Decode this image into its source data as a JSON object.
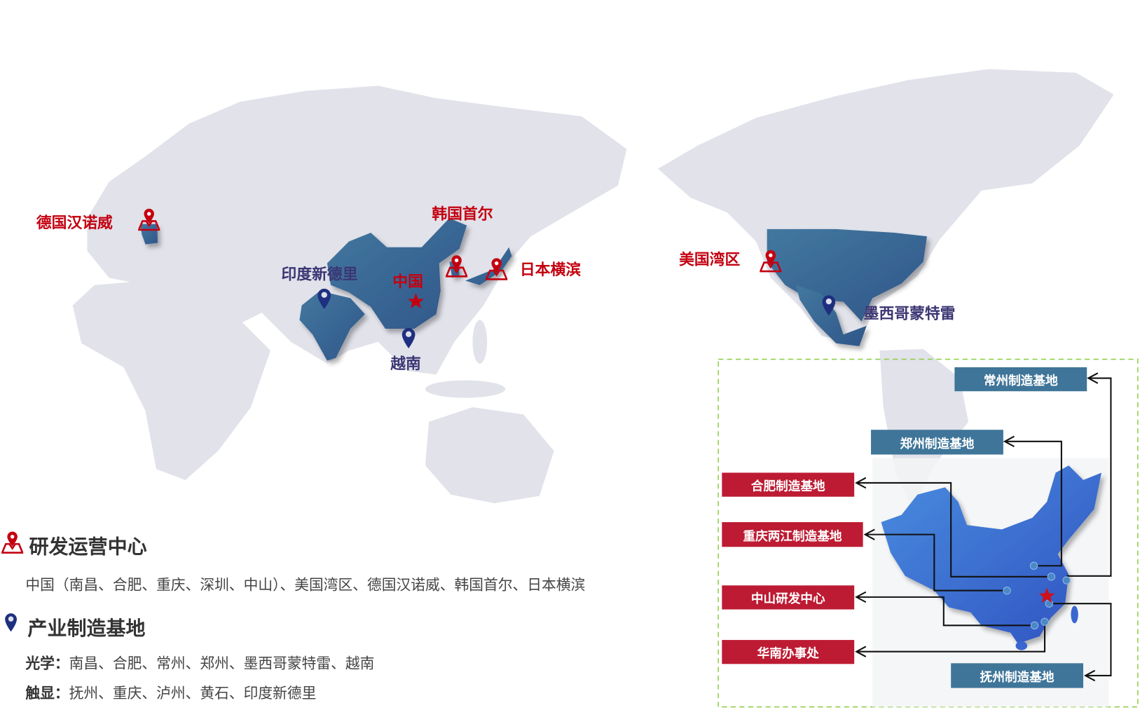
{
  "map_labels": {
    "germany": "德国汉诺威",
    "korea": "韩国首尔",
    "japan": "日本横滨",
    "china": "中国",
    "india": "印度新德里",
    "vietnam": "越南",
    "usa": "美国湾区",
    "mexico": "墨西哥蒙特雷"
  },
  "inset": {
    "changzhou": "常州制造基地",
    "zhengzhou": "郑州制造基地",
    "hefei": "合肥制造基地",
    "chongqing": "重庆两江制造基地",
    "zhongshan": "中山研发中心",
    "huanan": "华南办事处",
    "fuzhou": "抚州制造基地"
  },
  "legend": {
    "rd_title": "研发运营中心",
    "rd_text": "中国（南昌、合肥、重庆、深圳、中山）、美国湾区、德国汉诺威、韩国首尔、日本横滨",
    "mfg_title": "产业制造基地",
    "optics_label": "光学：",
    "optics_text": "南昌、合肥、常州、郑州、墨西哥蒙特雷、越南",
    "touch_label": "触显：",
    "touch_text": "抚州、重庆、泸州、黄石、印度新德里"
  },
  "colors": {
    "rd_red": "#c40010",
    "mfg_navy": "#1f2f7f",
    "highlight_country": "#3d6e9a",
    "land": "#e1e2ea",
    "box_blue": "#3f7599",
    "box_red": "#bd1b33",
    "inset_border": "#8fcf4a"
  }
}
